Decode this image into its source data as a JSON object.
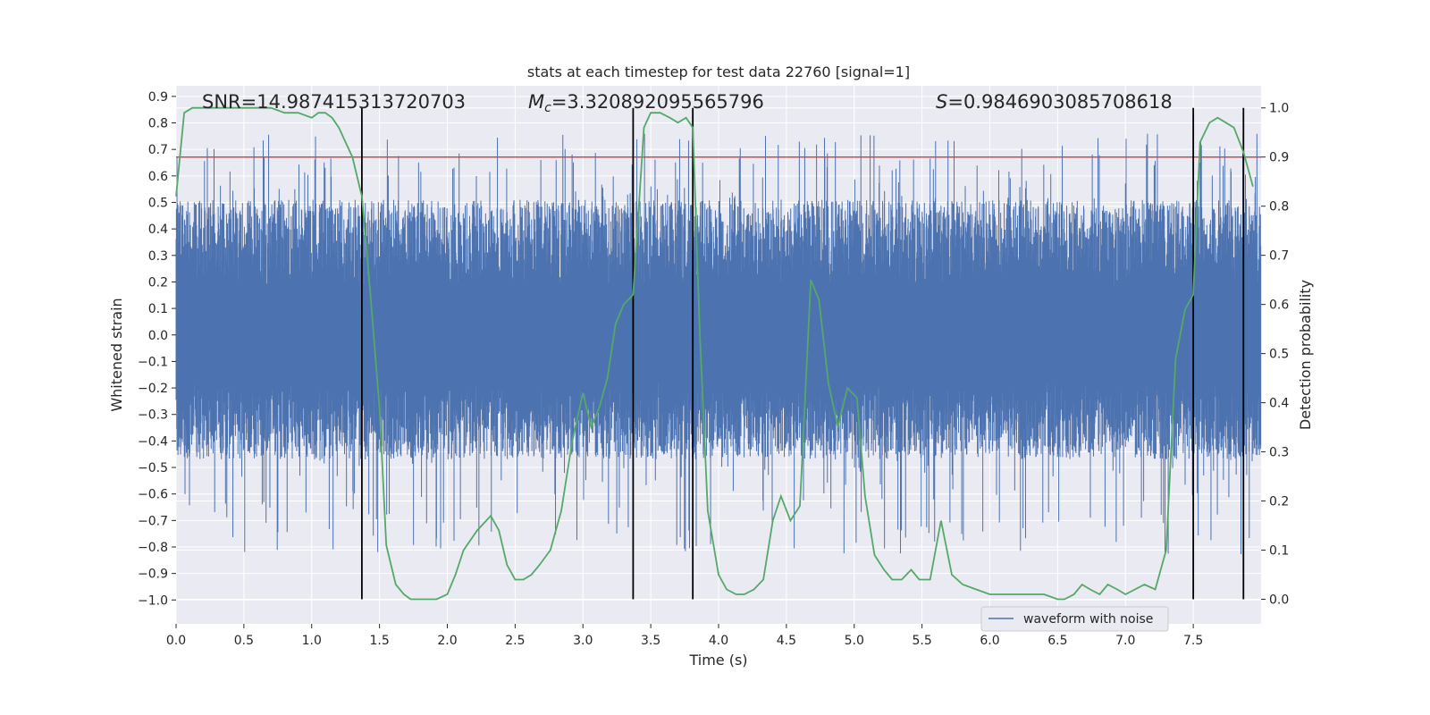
{
  "colors": {
    "background": "#eaeaf2",
    "grid": "#ffffff",
    "waveform": "#4c72b0",
    "probability": "#55a868",
    "threshold": "#c44e52",
    "marker": "#000000",
    "text": "#262626"
  },
  "chart_data": {
    "type": "line",
    "title": "stats at each timestep for test data 22760 [signal=1]",
    "xlabel": "Time (s)",
    "ylabel_left": "Whitened strain",
    "ylabel_right": "Detection probability",
    "xlim": [
      0.0,
      8.0
    ],
    "ylim_left": [
      -1.09,
      0.94
    ],
    "ylim_right": [
      -0.05,
      1.045
    ],
    "x_ticks": [
      "0.0",
      "0.5",
      "1.0",
      "1.5",
      "2.0",
      "2.5",
      "3.0",
      "3.5",
      "4.0",
      "4.5",
      "5.0",
      "5.5",
      "6.0",
      "6.5",
      "7.0",
      "7.5"
    ],
    "y_ticks_left": [
      "0.9",
      "0.8",
      "0.7",
      "0.6",
      "0.5",
      "0.4",
      "0.3",
      "0.2",
      "0.1",
      "0.0",
      "-0.1",
      "-0.2",
      "-0.3",
      "-0.4",
      "-0.5",
      "-0.6",
      "-0.7",
      "-0.8",
      "-0.9",
      "-1.0"
    ],
    "y_ticks_right": [
      "1.0",
      "0.9",
      "0.8",
      "0.7",
      "0.6",
      "0.5",
      "0.4",
      "0.3",
      "0.2",
      "0.1",
      "0.0"
    ],
    "annotations": {
      "snr_label": "SNR=14.987415313720703",
      "mc_symbol": "M",
      "mc_sub": "c",
      "mc_value": "=3.320892095565796",
      "s_symbol": "S",
      "s_value": "=0.9846903085708618"
    },
    "threshold_probability": 0.9,
    "vertical_markers": [
      1.37,
      3.37,
      3.81,
      7.5,
      7.87
    ],
    "series": [
      {
        "name": "waveform with noise",
        "axis": "left",
        "style": "noise",
        "envelope_typical": [
          -0.34,
          0.38
        ],
        "spike_range": [
          -0.93,
          0.86
        ]
      },
      {
        "name": "Detection probability",
        "axis": "right",
        "x": [
          0.0,
          0.06,
          0.12,
          0.2,
          0.3,
          0.4,
          0.5,
          0.6,
          0.7,
          0.8,
          0.9,
          1.0,
          1.05,
          1.1,
          1.15,
          1.2,
          1.25,
          1.3,
          1.37,
          1.43,
          1.5,
          1.55,
          1.62,
          1.68,
          1.73,
          1.78,
          1.85,
          1.92,
          2.0,
          2.06,
          2.12,
          2.22,
          2.32,
          2.38,
          2.44,
          2.5,
          2.56,
          2.62,
          2.68,
          2.76,
          2.84,
          2.92,
          3.0,
          3.06,
          3.12,
          3.18,
          3.24,
          3.3,
          3.37,
          3.45,
          3.5,
          3.57,
          3.64,
          3.7,
          3.76,
          3.81,
          3.86,
          3.92,
          4.0,
          4.06,
          4.13,
          4.19,
          4.26,
          4.33,
          4.4,
          4.46,
          4.53,
          4.6,
          4.68,
          4.74,
          4.81,
          4.88,
          4.95,
          5.02,
          5.08,
          5.15,
          5.22,
          5.28,
          5.35,
          5.42,
          5.48,
          5.56,
          5.64,
          5.72,
          5.8,
          5.9,
          6.0,
          6.1,
          6.2,
          6.3,
          6.4,
          6.5,
          6.55,
          6.62,
          6.68,
          6.74,
          6.81,
          6.87,
          6.94,
          7.0,
          7.07,
          7.14,
          7.22,
          7.3,
          7.37,
          7.44,
          7.5,
          7.55,
          7.62,
          7.68,
          7.74,
          7.8,
          7.87,
          7.94
        ],
        "values": [
          0.82,
          0.99,
          1.0,
          1.0,
          1.0,
          1.0,
          1.0,
          1.0,
          1.0,
          0.99,
          0.99,
          0.98,
          0.99,
          0.99,
          0.98,
          0.96,
          0.93,
          0.9,
          0.82,
          0.63,
          0.39,
          0.11,
          0.03,
          0.01,
          0.0,
          0.0,
          0.0,
          0.0,
          0.01,
          0.05,
          0.1,
          0.14,
          0.17,
          0.14,
          0.07,
          0.04,
          0.04,
          0.05,
          0.07,
          0.1,
          0.18,
          0.32,
          0.42,
          0.35,
          0.39,
          0.45,
          0.56,
          0.6,
          0.62,
          0.96,
          0.99,
          0.99,
          0.98,
          0.97,
          0.98,
          0.96,
          0.55,
          0.18,
          0.05,
          0.02,
          0.01,
          0.01,
          0.02,
          0.04,
          0.16,
          0.21,
          0.16,
          0.19,
          0.65,
          0.61,
          0.44,
          0.35,
          0.43,
          0.41,
          0.21,
          0.09,
          0.06,
          0.04,
          0.04,
          0.06,
          0.04,
          0.04,
          0.16,
          0.05,
          0.03,
          0.02,
          0.01,
          0.01,
          0.01,
          0.01,
          0.01,
          0.0,
          0.0,
          0.01,
          0.03,
          0.02,
          0.01,
          0.03,
          0.02,
          0.01,
          0.02,
          0.03,
          0.02,
          0.1,
          0.49,
          0.59,
          0.62,
          0.93,
          0.97,
          0.98,
          0.97,
          0.96,
          0.91,
          0.84
        ]
      }
    ],
    "legend_position": "bottom-right"
  }
}
